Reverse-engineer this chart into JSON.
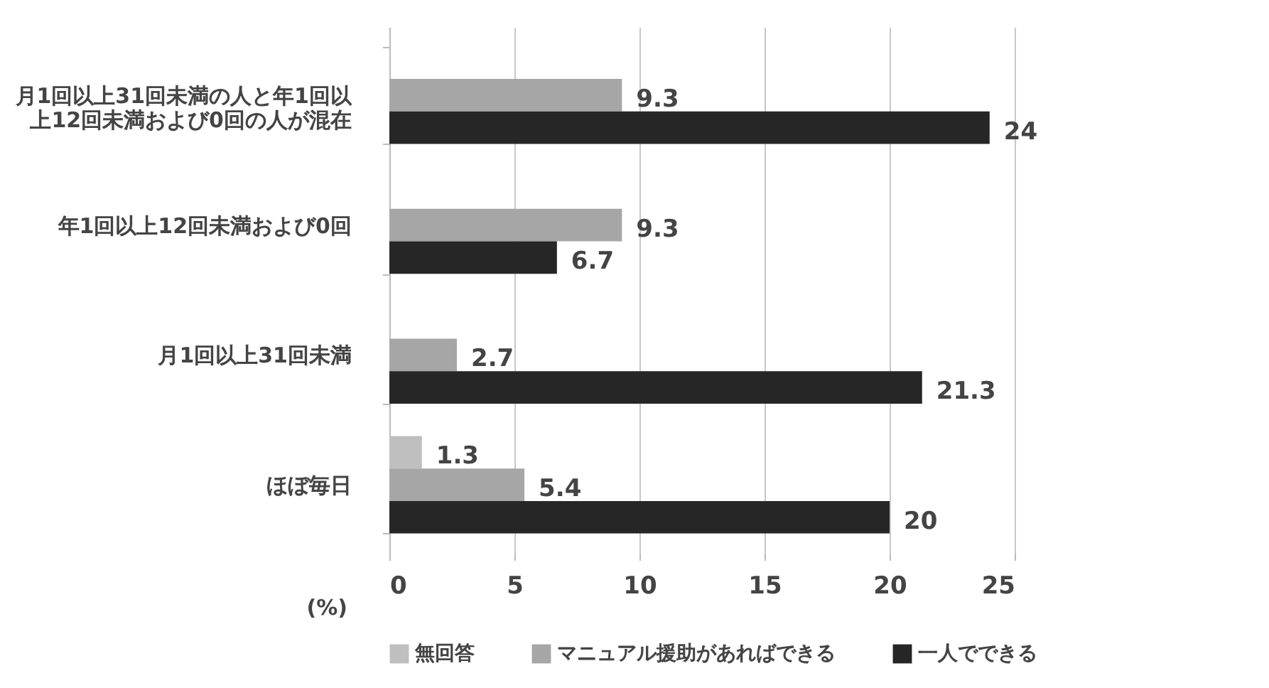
{
  "chart_data": {
    "type": "bar",
    "orientation": "horizontal",
    "xlabel": "(%)",
    "categories": [
      "月1回以上31回未満の人と年1回以上12回未満および0回の人が混在",
      "年1回以上12回未満および0回",
      "月1回以上31回未満",
      "ほぼ毎日"
    ],
    "series": [
      {
        "name": "無回答",
        "color": "#bfbfbf",
        "values": [
          null,
          null,
          null,
          1.3
        ]
      },
      {
        "name": "マニュアル援助があればできる",
        "color": "#a6a6a6",
        "values": [
          9.3,
          9.3,
          2.7,
          5.4
        ]
      },
      {
        "name": "一人でできる",
        "color": "#262626",
        "values": [
          24,
          6.7,
          21.3,
          20
        ]
      }
    ],
    "xlim": [
      0,
      25
    ],
    "xticks": [
      0,
      5,
      10,
      15,
      20,
      25
    ],
    "grid": "x",
    "data_labels": true,
    "legend": "bottom"
  }
}
